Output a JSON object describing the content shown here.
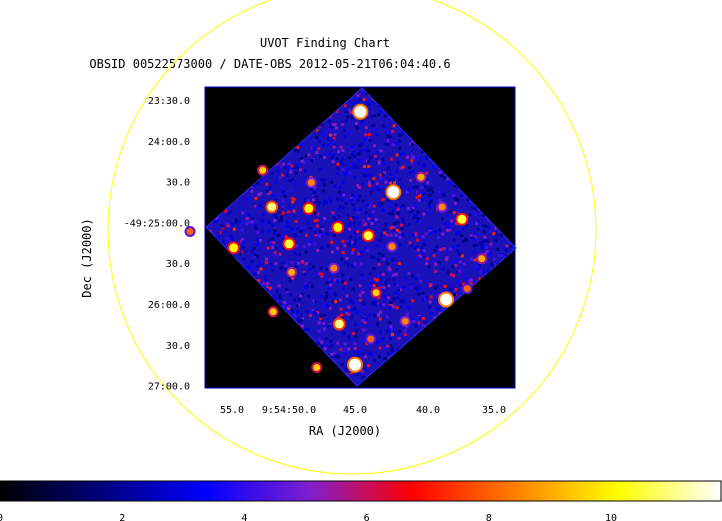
{
  "chart_data": {
    "type": "heatmap",
    "title": "UVOT Finding Chart",
    "subtitle": "OBSID 00522573000 / DATE-OBS 2012-05-21T06:04:40.6",
    "xlabel": "RA (J2000)",
    "ylabel": "Dec (J2000)",
    "x_ticks": [
      "55.0",
      "9:54:50.0",
      "45.0",
      "40.0",
      "35.0"
    ],
    "y_ticks": [
      "23:30.0",
      "24:00.0",
      "30.0",
      "-49:25:00.0",
      "30.0",
      "26:00.0",
      "30.0",
      "27:00.0"
    ],
    "colorbar": {
      "ticks": [
        "0",
        "2",
        "4",
        "6",
        "8",
        "10"
      ],
      "tick_values": [
        0,
        2,
        4,
        6,
        8,
        10
      ],
      "range": [
        0,
        11.8
      ],
      "colormap": [
        "#000000",
        "#00007f",
        "#0000ff",
        "#7f1fcf",
        "#ff0000",
        "#ff7f00",
        "#ffff00",
        "#ffffff"
      ]
    },
    "image_background": "#000000",
    "region_circle_color": "#ffff00",
    "frame_color": "#0000cc",
    "sources_radec": [
      {
        "ra": "9:54:44.6",
        "dec": "-49:23:39",
        "value": 11.8
      },
      {
        "ra": "9:54:42.1",
        "dec": "-49:24:38",
        "value": 11.8
      },
      {
        "ra": "9:54:38.1",
        "dec": "-49:25:57",
        "value": 11.8
      },
      {
        "ra": "9:54:45.0",
        "dec": "-49:26:45",
        "value": 11.8
      },
      {
        "ra": "9:54:46.2",
        "dec": "-49:26:15",
        "value": 11.0
      },
      {
        "ra": "9:54:51.3",
        "dec": "-49:24:49",
        "value": 11.0
      },
      {
        "ra": "9:54:50.0",
        "dec": "-49:25:16",
        "value": 10.5
      },
      {
        "ra": "9:54:44.0",
        "dec": "-49:25:10",
        "value": 10.5
      },
      {
        "ra": "9:54:36.9",
        "dec": "-49:24:58",
        "value": 10.5
      },
      {
        "ra": "9:54:48.5",
        "dec": "-49:24:50",
        "value": 10.0
      },
      {
        "ra": "9:54:46.3",
        "dec": "-49:25:04",
        "value": 10.0
      },
      {
        "ra": "9:54:54.2",
        "dec": "-49:25:19",
        "value": 10.0
      },
      {
        "ra": "9:54:52.0",
        "dec": "-49:24:22",
        "value": 9.5
      },
      {
        "ra": "9:54:43.4",
        "dec": "-49:25:52",
        "value": 9.5
      },
      {
        "ra": "9:54:51.2",
        "dec": "-49:26:06",
        "value": 9.5
      },
      {
        "ra": "9:54:47.9",
        "dec": "-49:26:47",
        "value": 9.5
      },
      {
        "ra": "9:54:49.8",
        "dec": "-49:25:37",
        "value": 9.0
      },
      {
        "ra": "9:54:40.0",
        "dec": "-49:24:27",
        "value": 9.0
      },
      {
        "ra": "9:54:35.4",
        "dec": "-49:25:27",
        "value": 9.0
      },
      {
        "ra": "9:54:48.3",
        "dec": "-49:24:31",
        "value": 8.5
      },
      {
        "ra": "9:54:42.2",
        "dec": "-49:25:18",
        "value": 8.5
      },
      {
        "ra": "9:54:41.2",
        "dec": "-49:26:13",
        "value": 8.5
      },
      {
        "ra": "9:54:38.4",
        "dec": "-49:24:49",
        "value": 8.5
      },
      {
        "ra": "9:54:46.6",
        "dec": "-49:25:34",
        "value": 8.5
      },
      {
        "ra": "9:54:43.8",
        "dec": "-49:26:26",
        "value": 8.0
      },
      {
        "ra": "9:54:57.5",
        "dec": "-49:25:07",
        "value": 8.0
      },
      {
        "ra": "9:54:36.5",
        "dec": "-49:25:49",
        "value": 8.0
      }
    ]
  }
}
